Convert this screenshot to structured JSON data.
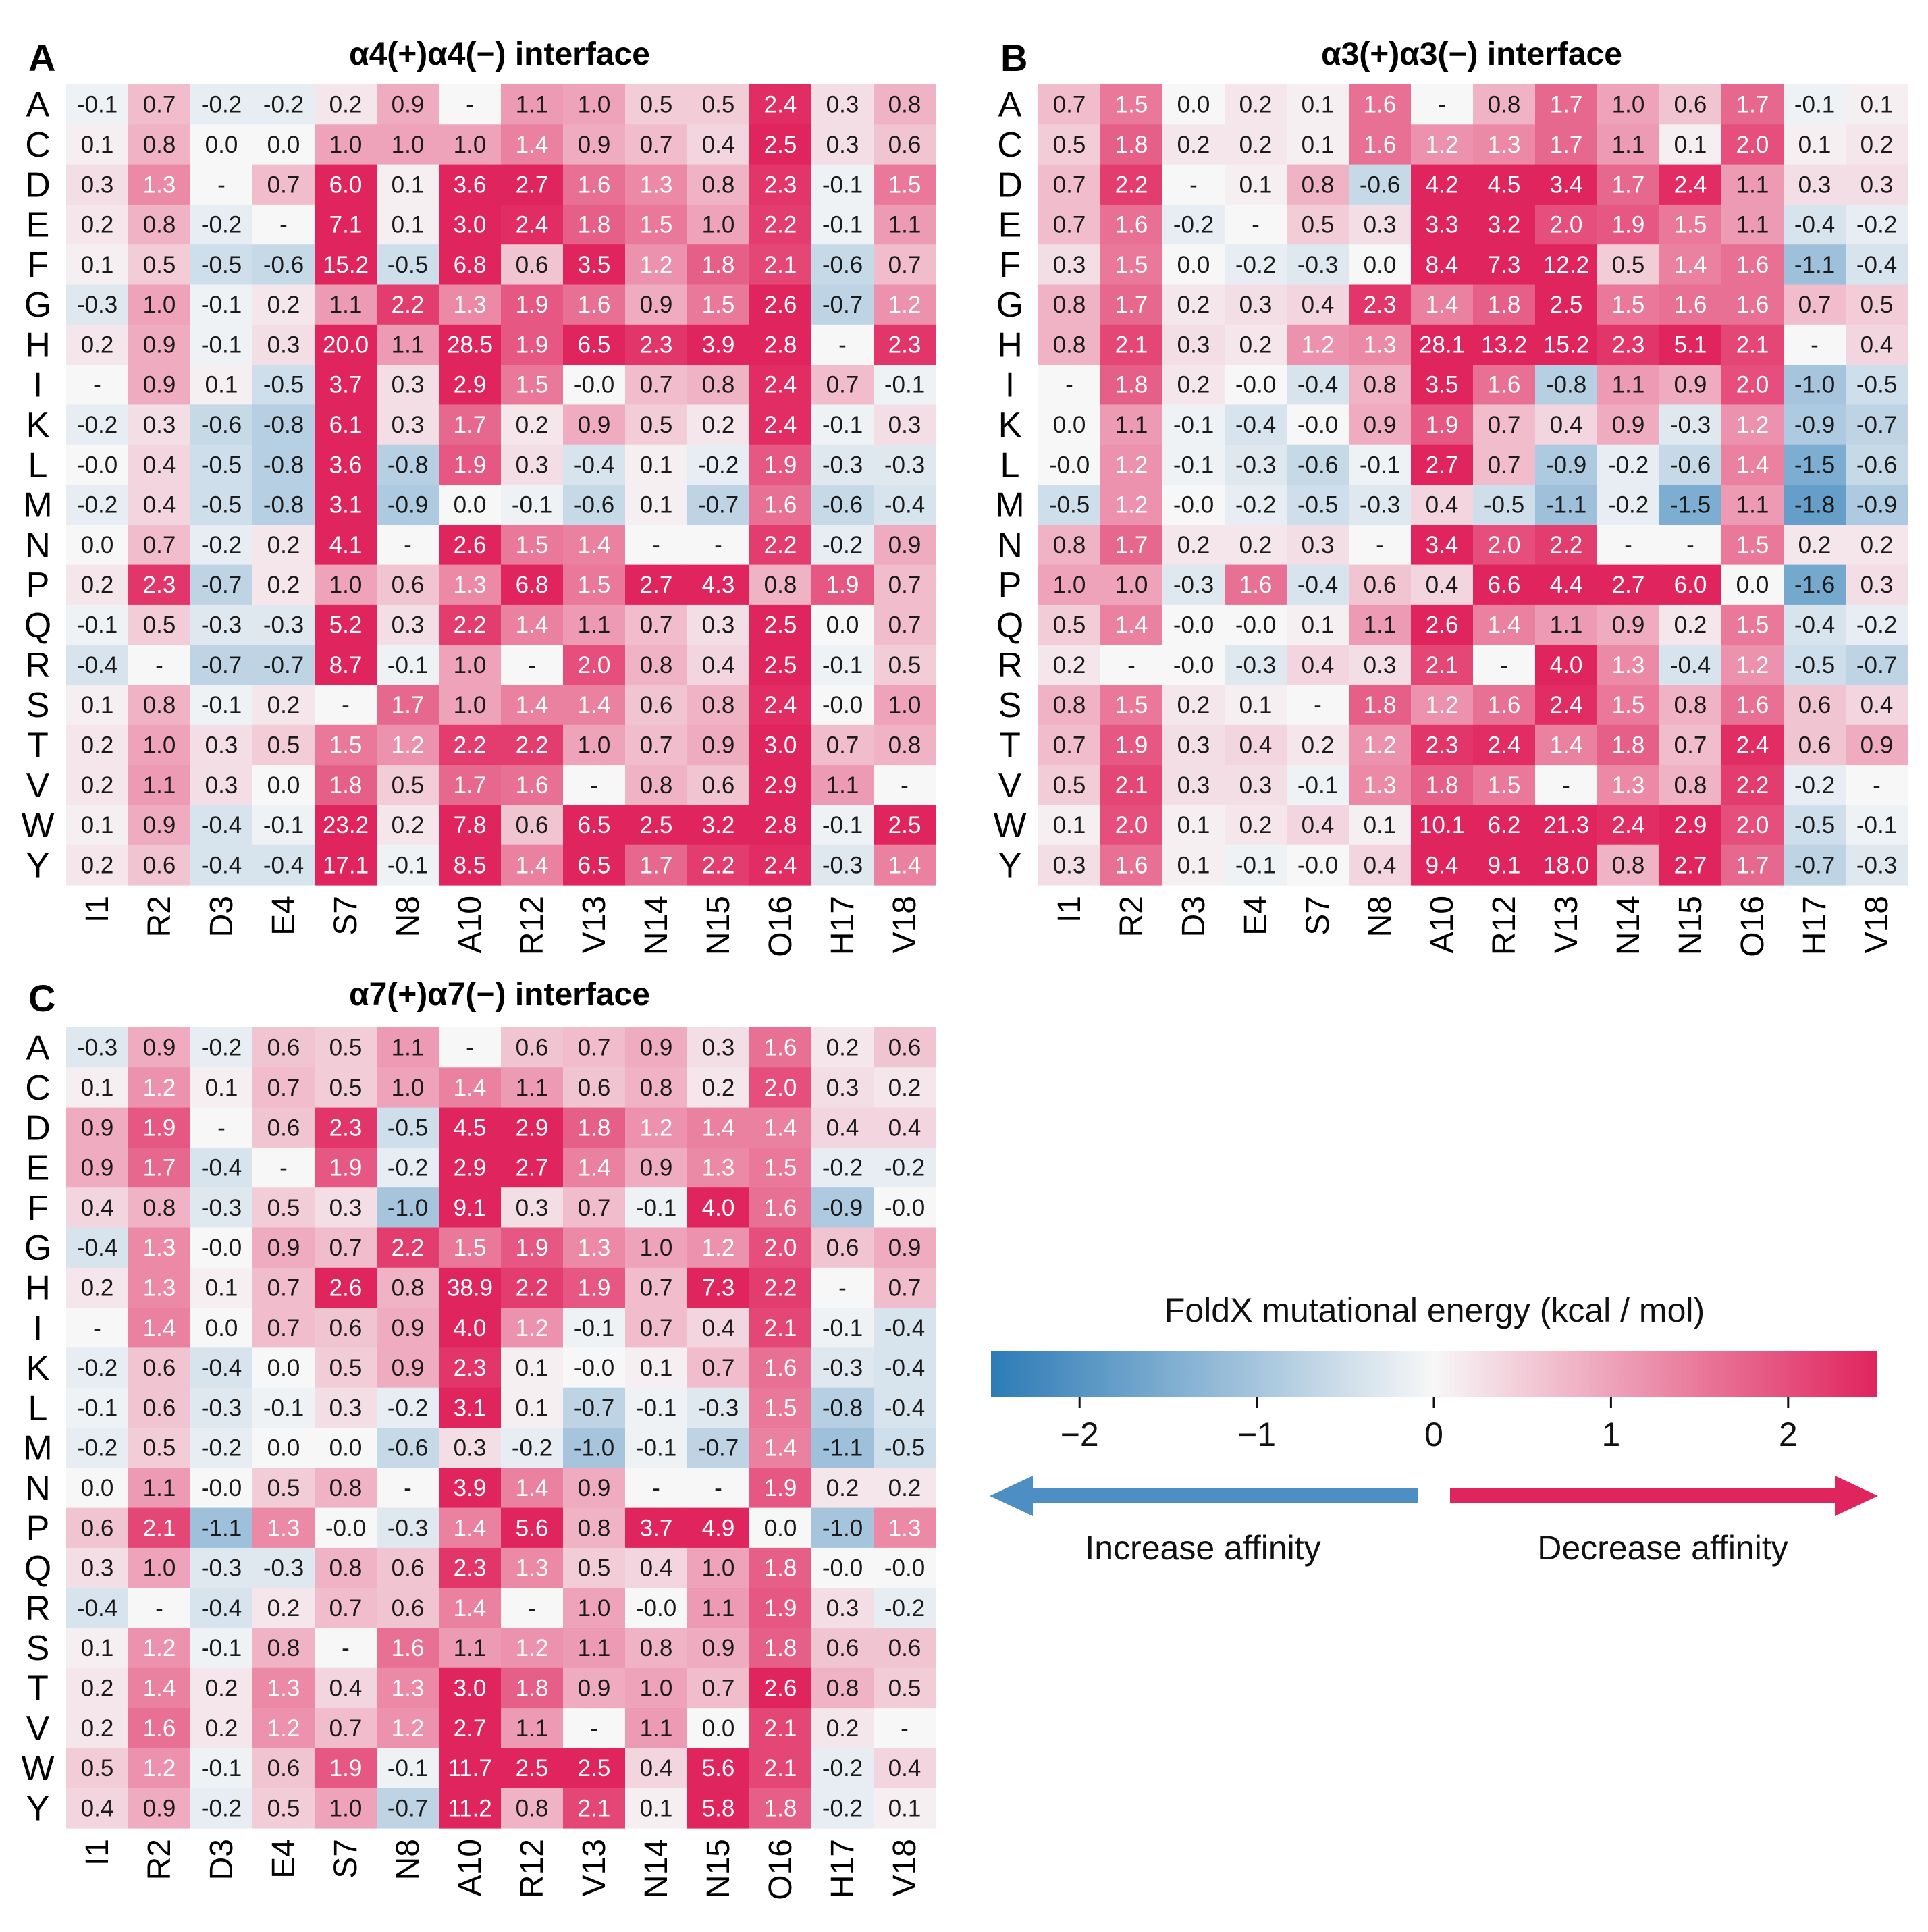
{
  "figure": {
    "colorbar": {
      "title": "FoldX mutational energy (kcal / mol)",
      "min": -2.5,
      "max": 2.5,
      "ticks": [
        -2,
        -1,
        0,
        1,
        2
      ],
      "tick_labels": [
        "−2",
        "−1",
        "0",
        "1",
        "2"
      ],
      "left_arrow_label": "Increase affinity",
      "right_arrow_label": "Decrease affinity",
      "colors": {
        "low": "#2c7bb6",
        "mid": "#f7f7f7",
        "high": "#e0245e",
        "left_arrow": "#4d8fc4",
        "right_arrow": "#e0245e"
      }
    }
  },
  "chart_data": [
    {
      "type": "heatmap",
      "panel": "A",
      "title": "α4(+)α4(−) interface",
      "rows": [
        "A",
        "C",
        "D",
        "E",
        "F",
        "G",
        "H",
        "I",
        "K",
        "L",
        "M",
        "N",
        "P",
        "Q",
        "R",
        "S",
        "T",
        "V",
        "W",
        "Y"
      ],
      "cols": [
        "I1",
        "R2",
        "D3",
        "E4",
        "S7",
        "N8",
        "A10",
        "R12",
        "V13",
        "N14",
        "N15",
        "O16",
        "H17",
        "V18"
      ],
      "values": [
        [
          "-0.1",
          "0.7",
          "-0.2",
          "-0.2",
          "0.2",
          "0.9",
          "-",
          "1.1",
          "1.0",
          "0.5",
          "0.5",
          "2.4",
          "0.3",
          "0.8"
        ],
        [
          "0.1",
          "0.8",
          "0.0",
          "0.0",
          "1.0",
          "1.0",
          "1.0",
          "1.4",
          "0.9",
          "0.7",
          "0.4",
          "2.5",
          "0.3",
          "0.6"
        ],
        [
          "0.3",
          "1.3",
          "-",
          "0.7",
          "6.0",
          "0.1",
          "3.6",
          "2.7",
          "1.6",
          "1.3",
          "0.8",
          "2.3",
          "-0.1",
          "1.5"
        ],
        [
          "0.2",
          "0.8",
          "-0.2",
          "-",
          "7.1",
          "0.1",
          "3.0",
          "2.4",
          "1.8",
          "1.5",
          "1.0",
          "2.2",
          "-0.1",
          "1.1"
        ],
        [
          "0.1",
          "0.5",
          "-0.5",
          "-0.6",
          "15.2",
          "-0.5",
          "6.8",
          "0.6",
          "3.5",
          "1.2",
          "1.8",
          "2.1",
          "-0.6",
          "0.7"
        ],
        [
          "-0.3",
          "1.0",
          "-0.1",
          "0.2",
          "1.1",
          "2.2",
          "1.3",
          "1.9",
          "1.6",
          "0.9",
          "1.5",
          "2.6",
          "-0.7",
          "1.2"
        ],
        [
          "0.2",
          "0.9",
          "-0.1",
          "0.3",
          "20.0",
          "1.1",
          "28.5",
          "1.9",
          "6.5",
          "2.3",
          "3.9",
          "2.8",
          "-",
          "2.3"
        ],
        [
          "-",
          "0.9",
          "0.1",
          "-0.5",
          "3.7",
          "0.3",
          "2.9",
          "1.5",
          "-0.0",
          "0.7",
          "0.8",
          "2.4",
          "0.7",
          "-0.1"
        ],
        [
          "-0.2",
          "0.3",
          "-0.6",
          "-0.8",
          "6.1",
          "0.3",
          "1.7",
          "0.2",
          "0.9",
          "0.5",
          "0.2",
          "2.4",
          "-0.1",
          "0.3"
        ],
        [
          "-0.0",
          "0.4",
          "-0.5",
          "-0.8",
          "3.6",
          "-0.8",
          "1.9",
          "0.3",
          "-0.4",
          "0.1",
          "-0.2",
          "1.9",
          "-0.3",
          "-0.3"
        ],
        [
          "-0.2",
          "0.4",
          "-0.5",
          "-0.8",
          "3.1",
          "-0.9",
          "0.0",
          "-0.1",
          "-0.6",
          "0.1",
          "-0.7",
          "1.6",
          "-0.6",
          "-0.4"
        ],
        [
          "0.0",
          "0.7",
          "-0.2",
          "0.2",
          "4.1",
          "-",
          "2.6",
          "1.5",
          "1.4",
          "-",
          "-",
          "2.2",
          "-0.2",
          "0.9"
        ],
        [
          "0.2",
          "2.3",
          "-0.7",
          "0.2",
          "1.0",
          "0.6",
          "1.3",
          "6.8",
          "1.5",
          "2.7",
          "4.3",
          "0.8",
          "1.9",
          "0.7"
        ],
        [
          "-0.1",
          "0.5",
          "-0.3",
          "-0.3",
          "5.2",
          "0.3",
          "2.2",
          "1.4",
          "1.1",
          "0.7",
          "0.3",
          "2.5",
          "0.0",
          "0.7"
        ],
        [
          "-0.4",
          "-",
          "-0.7",
          "-0.7",
          "8.7",
          "-0.1",
          "1.0",
          "-",
          "2.0",
          "0.8",
          "0.4",
          "2.5",
          "-0.1",
          "0.5"
        ],
        [
          "0.1",
          "0.8",
          "-0.1",
          "0.2",
          "-",
          "1.7",
          "1.0",
          "1.4",
          "1.4",
          "0.6",
          "0.8",
          "2.4",
          "-0.0",
          "1.0"
        ],
        [
          "0.2",
          "1.0",
          "0.3",
          "0.5",
          "1.5",
          "1.2",
          "2.2",
          "2.2",
          "1.0",
          "0.7",
          "0.9",
          "3.0",
          "0.7",
          "0.8"
        ],
        [
          "0.2",
          "1.1",
          "0.3",
          "0.0",
          "1.8",
          "0.5",
          "1.7",
          "1.6",
          "-",
          "0.8",
          "0.6",
          "2.9",
          "1.1",
          "-"
        ],
        [
          "0.1",
          "0.9",
          "-0.4",
          "-0.1",
          "23.2",
          "0.2",
          "7.8",
          "0.6",
          "6.5",
          "2.5",
          "3.2",
          "2.8",
          "-0.1",
          "2.5"
        ],
        [
          "0.2",
          "0.6",
          "-0.4",
          "-0.4",
          "17.1",
          "-0.1",
          "8.5",
          "1.4",
          "6.5",
          "1.7",
          "2.2",
          "2.4",
          "-0.3",
          "1.4"
        ]
      ]
    },
    {
      "type": "heatmap",
      "panel": "B",
      "title": "α3(+)α3(−) interface",
      "rows": [
        "A",
        "C",
        "D",
        "E",
        "F",
        "G",
        "H",
        "I",
        "K",
        "L",
        "M",
        "N",
        "P",
        "Q",
        "R",
        "S",
        "T",
        "V",
        "W",
        "Y"
      ],
      "cols": [
        "I1",
        "R2",
        "D3",
        "E4",
        "S7",
        "N8",
        "A10",
        "R12",
        "V13",
        "N14",
        "N15",
        "O16",
        "H17",
        "V18"
      ],
      "values": [
        [
          "0.7",
          "1.5",
          "0.0",
          "0.2",
          "0.1",
          "1.6",
          "-",
          "0.8",
          "1.7",
          "1.0",
          "0.6",
          "1.7",
          "-0.1",
          "0.1"
        ],
        [
          "0.5",
          "1.8",
          "0.2",
          "0.2",
          "0.1",
          "1.6",
          "1.2",
          "1.3",
          "1.7",
          "1.1",
          "0.1",
          "2.0",
          "0.1",
          "0.2"
        ],
        [
          "0.7",
          "2.2",
          "-",
          "0.1",
          "0.8",
          "-0.6",
          "4.2",
          "4.5",
          "3.4",
          "1.7",
          "2.4",
          "1.1",
          "0.3",
          "0.3"
        ],
        [
          "0.7",
          "1.6",
          "-0.2",
          "-",
          "0.5",
          "0.3",
          "3.3",
          "3.2",
          "2.0",
          "1.9",
          "1.5",
          "1.1",
          "-0.4",
          "-0.2"
        ],
        [
          "0.3",
          "1.5",
          "0.0",
          "-0.2",
          "-0.3",
          "0.0",
          "8.4",
          "7.3",
          "12.2",
          "0.5",
          "1.4",
          "1.6",
          "-1.1",
          "-0.4"
        ],
        [
          "0.8",
          "1.7",
          "0.2",
          "0.3",
          "0.4",
          "2.3",
          "1.4",
          "1.8",
          "2.5",
          "1.5",
          "1.6",
          "1.6",
          "0.7",
          "0.5"
        ],
        [
          "0.8",
          "2.1",
          "0.3",
          "0.2",
          "1.2",
          "1.3",
          "28.1",
          "13.2",
          "15.2",
          "2.3",
          "5.1",
          "2.1",
          "-",
          "0.4"
        ],
        [
          "-",
          "1.8",
          "0.2",
          "-0.0",
          "-0.4",
          "0.8",
          "3.5",
          "1.6",
          "-0.8",
          "1.1",
          "0.9",
          "2.0",
          "-1.0",
          "-0.5"
        ],
        [
          "0.0",
          "1.1",
          "-0.1",
          "-0.4",
          "-0.0",
          "0.9",
          "1.9",
          "0.7",
          "0.4",
          "0.9",
          "-0.3",
          "1.2",
          "-0.9",
          "-0.7"
        ],
        [
          "-0.0",
          "1.2",
          "-0.1",
          "-0.3",
          "-0.6",
          "-0.1",
          "2.7",
          "0.7",
          "-0.9",
          "-0.2",
          "-0.6",
          "1.4",
          "-1.5",
          "-0.6"
        ],
        [
          "-0.5",
          "1.2",
          "-0.0",
          "-0.2",
          "-0.5",
          "-0.3",
          "0.4",
          "-0.5",
          "-1.1",
          "-0.2",
          "-1.5",
          "1.1",
          "-1.8",
          "-0.9"
        ],
        [
          "0.8",
          "1.7",
          "0.2",
          "0.2",
          "0.3",
          "-",
          "3.4",
          "2.0",
          "2.2",
          "-",
          "-",
          "1.5",
          "0.2",
          "0.2"
        ],
        [
          "1.0",
          "1.0",
          "-0.3",
          "1.6",
          "-0.4",
          "0.6",
          "0.4",
          "6.6",
          "4.4",
          "2.7",
          "6.0",
          "0.0",
          "-1.6",
          "0.3"
        ],
        [
          "0.5",
          "1.4",
          "-0.0",
          "-0.0",
          "0.1",
          "1.1",
          "2.6",
          "1.4",
          "1.1",
          "0.9",
          "0.2",
          "1.5",
          "-0.4",
          "-0.2"
        ],
        [
          "0.2",
          "-",
          "-0.0",
          "-0.3",
          "0.4",
          "0.3",
          "2.1",
          "-",
          "4.0",
          "1.3",
          "-0.4",
          "1.2",
          "-0.5",
          "-0.7"
        ],
        [
          "0.8",
          "1.5",
          "0.2",
          "0.1",
          "-",
          "1.8",
          "1.2",
          "1.6",
          "2.4",
          "1.5",
          "0.8",
          "1.6",
          "0.6",
          "0.4"
        ],
        [
          "0.7",
          "1.9",
          "0.3",
          "0.4",
          "0.2",
          "1.2",
          "2.3",
          "2.4",
          "1.4",
          "1.8",
          "0.7",
          "2.4",
          "0.6",
          "0.9"
        ],
        [
          "0.5",
          "2.1",
          "0.3",
          "0.3",
          "-0.1",
          "1.3",
          "1.8",
          "1.5",
          "-",
          "1.3",
          "0.8",
          "2.2",
          "-0.2",
          "-"
        ],
        [
          "0.1",
          "2.0",
          "0.1",
          "0.2",
          "0.4",
          "0.1",
          "10.1",
          "6.2",
          "21.3",
          "2.4",
          "2.9",
          "2.0",
          "-0.5",
          "-0.1"
        ],
        [
          "0.3",
          "1.6",
          "0.1",
          "-0.1",
          "-0.0",
          "0.4",
          "9.4",
          "9.1",
          "18.0",
          "0.8",
          "2.7",
          "1.7",
          "-0.7",
          "-0.3"
        ]
      ]
    },
    {
      "type": "heatmap",
      "panel": "C",
      "title": "α7(+)α7(−) interface",
      "rows": [
        "A",
        "C",
        "D",
        "E",
        "F",
        "G",
        "H",
        "I",
        "K",
        "L",
        "M",
        "N",
        "P",
        "Q",
        "R",
        "S",
        "T",
        "V",
        "W",
        "Y"
      ],
      "cols": [
        "I1",
        "R2",
        "D3",
        "E4",
        "S7",
        "N8",
        "A10",
        "R12",
        "V13",
        "N14",
        "N15",
        "O16",
        "H17",
        "V18"
      ],
      "values": [
        [
          "-0.3",
          "0.9",
          "-0.2",
          "0.6",
          "0.5",
          "1.1",
          "-",
          "0.6",
          "0.7",
          "0.9",
          "0.3",
          "1.6",
          "0.2",
          "0.6"
        ],
        [
          "0.1",
          "1.2",
          "0.1",
          "0.7",
          "0.5",
          "1.0",
          "1.4",
          "1.1",
          "0.6",
          "0.8",
          "0.2",
          "2.0",
          "0.3",
          "0.2"
        ],
        [
          "0.9",
          "1.9",
          "-",
          "0.6",
          "2.3",
          "-0.5",
          "4.5",
          "2.9",
          "1.8",
          "1.2",
          "1.4",
          "1.4",
          "0.4",
          "0.4"
        ],
        [
          "0.9",
          "1.7",
          "-0.4",
          "-",
          "1.9",
          "-0.2",
          "2.9",
          "2.7",
          "1.4",
          "0.9",
          "1.3",
          "1.5",
          "-0.2",
          "-0.2"
        ],
        [
          "0.4",
          "0.8",
          "-0.3",
          "0.5",
          "0.3",
          "-1.0",
          "9.1",
          "0.3",
          "0.7",
          "-0.1",
          "4.0",
          "1.6",
          "-0.9",
          "-0.0"
        ],
        [
          "-0.4",
          "1.3",
          "-0.0",
          "0.9",
          "0.7",
          "2.2",
          "1.5",
          "1.9",
          "1.3",
          "1.0",
          "1.2",
          "2.0",
          "0.6",
          "0.9"
        ],
        [
          "0.2",
          "1.3",
          "0.1",
          "0.7",
          "2.6",
          "0.8",
          "38.9",
          "2.2",
          "1.9",
          "0.7",
          "7.3",
          "2.2",
          "-",
          "0.7"
        ],
        [
          "-",
          "1.4",
          "0.0",
          "0.7",
          "0.6",
          "0.9",
          "4.0",
          "1.2",
          "-0.1",
          "0.7",
          "0.4",
          "2.1",
          "-0.1",
          "-0.4"
        ],
        [
          "-0.2",
          "0.6",
          "-0.4",
          "0.0",
          "0.5",
          "0.9",
          "2.3",
          "0.1",
          "-0.0",
          "0.1",
          "0.7",
          "1.6",
          "-0.3",
          "-0.4"
        ],
        [
          "-0.1",
          "0.6",
          "-0.3",
          "-0.1",
          "0.3",
          "-0.2",
          "3.1",
          "0.1",
          "-0.7",
          "-0.1",
          "-0.3",
          "1.5",
          "-0.8",
          "-0.4"
        ],
        [
          "-0.2",
          "0.5",
          "-0.2",
          "0.0",
          "0.0",
          "-0.6",
          "0.3",
          "-0.2",
          "-1.0",
          "-0.1",
          "-0.7",
          "1.4",
          "-1.1",
          "-0.5"
        ],
        [
          "0.0",
          "1.1",
          "-0.0",
          "0.5",
          "0.8",
          "-",
          "3.9",
          "1.4",
          "0.9",
          "-",
          "-",
          "1.9",
          "0.2",
          "0.2"
        ],
        [
          "0.6",
          "2.1",
          "-1.1",
          "1.3",
          "-0.0",
          "-0.3",
          "1.4",
          "5.6",
          "0.8",
          "3.7",
          "4.9",
          "0.0",
          "-1.0",
          "1.3"
        ],
        [
          "0.3",
          "1.0",
          "-0.3",
          "-0.3",
          "0.8",
          "0.6",
          "2.3",
          "1.3",
          "0.5",
          "0.4",
          "1.0",
          "1.8",
          "-0.0",
          "-0.0"
        ],
        [
          "-0.4",
          "-",
          "-0.4",
          "0.2",
          "0.7",
          "0.6",
          "1.4",
          "-",
          "1.0",
          "-0.0",
          "1.1",
          "1.9",
          "0.3",
          "-0.2"
        ],
        [
          "0.1",
          "1.2",
          "-0.1",
          "0.8",
          "-",
          "1.6",
          "1.1",
          "1.2",
          "1.1",
          "0.8",
          "0.9",
          "1.8",
          "0.6",
          "0.6"
        ],
        [
          "0.2",
          "1.4",
          "0.2",
          "1.3",
          "0.4",
          "1.3",
          "3.0",
          "1.8",
          "0.9",
          "1.0",
          "0.7",
          "2.6",
          "0.8",
          "0.5"
        ],
        [
          "0.2",
          "1.6",
          "0.2",
          "1.2",
          "0.7",
          "1.2",
          "2.7",
          "1.1",
          "-",
          "1.1",
          "0.0",
          "2.1",
          "0.2",
          "-"
        ],
        [
          "0.5",
          "1.2",
          "-0.1",
          "0.6",
          "1.9",
          "-0.1",
          "11.7",
          "2.5",
          "2.5",
          "0.4",
          "5.6",
          "2.1",
          "-0.2",
          "0.4"
        ],
        [
          "0.4",
          "0.9",
          "-0.2",
          "0.5",
          "1.0",
          "-0.7",
          "11.2",
          "0.8",
          "2.1",
          "0.1",
          "5.8",
          "1.8",
          "-0.2",
          "0.1"
        ]
      ]
    }
  ]
}
